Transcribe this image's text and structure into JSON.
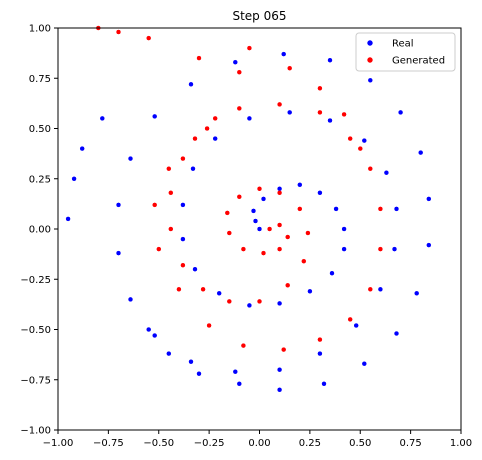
{
  "chart_data": {
    "type": "scatter",
    "title": "Step 065",
    "xlabel": "",
    "ylabel": "",
    "xlim": [
      -1.0,
      1.0
    ],
    "ylim": [
      -1.0,
      1.0
    ],
    "grid": false,
    "legend_position": "top-right",
    "xticks": [
      "−1.00",
      "−0.75",
      "−0.50",
      "−0.25",
      "0.00",
      "0.25",
      "0.50",
      "0.75",
      "1.00"
    ],
    "yticks": [
      "−1.00",
      "−0.75",
      "−0.50",
      "−0.25",
      "0.00",
      "0.25",
      "0.50",
      "0.75",
      "1.00"
    ],
    "series": [
      {
        "name": "Real",
        "color": "#0000ff",
        "points": [
          [
            0.0,
            0.0
          ],
          [
            -0.02,
            0.04
          ],
          [
            -0.03,
            0.09
          ],
          [
            0.02,
            0.15
          ],
          [
            0.1,
            0.2
          ],
          [
            0.2,
            0.22
          ],
          [
            0.3,
            0.18
          ],
          [
            0.38,
            0.1
          ],
          [
            0.42,
            0.0
          ],
          [
            0.42,
            -0.1
          ],
          [
            0.36,
            -0.22
          ],
          [
            0.25,
            -0.31
          ],
          [
            0.1,
            -0.37
          ],
          [
            -0.05,
            -0.38
          ],
          [
            -0.2,
            -0.32
          ],
          [
            -0.32,
            -0.2
          ],
          [
            -0.38,
            -0.05
          ],
          [
            -0.38,
            0.12
          ],
          [
            -0.33,
            0.3
          ],
          [
            -0.22,
            0.45
          ],
          [
            -0.05,
            0.55
          ],
          [
            0.15,
            0.58
          ],
          [
            0.35,
            0.54
          ],
          [
            0.52,
            0.44
          ],
          [
            0.63,
            0.28
          ],
          [
            0.68,
            0.1
          ],
          [
            0.67,
            -0.1
          ],
          [
            0.6,
            -0.3
          ],
          [
            0.48,
            -0.48
          ],
          [
            0.3,
            -0.62
          ],
          [
            0.1,
            -0.7
          ],
          [
            -0.12,
            -0.71
          ],
          [
            -0.34,
            -0.66
          ],
          [
            -0.52,
            -0.53
          ],
          [
            -0.64,
            -0.35
          ],
          [
            -0.7,
            -0.12
          ],
          [
            -0.7,
            0.12
          ],
          [
            -0.64,
            0.35
          ],
          [
            -0.52,
            0.56
          ],
          [
            -0.34,
            0.72
          ],
          [
            -0.12,
            0.83
          ],
          [
            0.12,
            0.87
          ],
          [
            0.35,
            0.84
          ],
          [
            0.55,
            0.74
          ],
          [
            0.7,
            0.58
          ],
          [
            0.8,
            0.38
          ],
          [
            0.84,
            0.15
          ],
          [
            0.84,
            -0.08
          ],
          [
            0.78,
            -0.32
          ],
          [
            0.68,
            -0.52
          ],
          [
            0.52,
            -0.67
          ],
          [
            0.32,
            -0.77
          ],
          [
            0.1,
            -0.8
          ],
          [
            -0.1,
            -0.77
          ],
          [
            -0.3,
            -0.72
          ],
          [
            -0.45,
            -0.62
          ],
          [
            -0.55,
            -0.5
          ],
          [
            -0.78,
            0.55
          ],
          [
            -0.88,
            0.4
          ],
          [
            -0.92,
            0.25
          ],
          [
            -0.95,
            0.05
          ]
        ]
      },
      {
        "name": "Generated",
        "color": "#ff0000",
        "points": [
          [
            0.05,
            0.0
          ],
          [
            0.1,
            0.02
          ],
          [
            0.14,
            -0.04
          ],
          [
            0.1,
            -0.1
          ],
          [
            0.02,
            -0.12
          ],
          [
            -0.08,
            -0.1
          ],
          [
            -0.15,
            -0.02
          ],
          [
            -0.16,
            0.08
          ],
          [
            -0.1,
            0.16
          ],
          [
            0.0,
            0.2
          ],
          [
            0.1,
            0.18
          ],
          [
            0.2,
            0.1
          ],
          [
            0.24,
            -0.02
          ],
          [
            0.22,
            -0.16
          ],
          [
            0.14,
            -0.28
          ],
          [
            0.0,
            -0.36
          ],
          [
            -0.15,
            -0.36
          ],
          [
            -0.28,
            -0.3
          ],
          [
            -0.38,
            -0.18
          ],
          [
            -0.44,
            0.0
          ],
          [
            -0.44,
            0.18
          ],
          [
            -0.38,
            0.35
          ],
          [
            -0.26,
            0.5
          ],
          [
            -0.1,
            0.6
          ],
          [
            0.1,
            0.62
          ],
          [
            0.3,
            0.58
          ],
          [
            0.45,
            0.45
          ],
          [
            0.55,
            0.3
          ],
          [
            0.6,
            0.1
          ],
          [
            0.6,
            -0.1
          ],
          [
            0.55,
            -0.3
          ],
          [
            0.45,
            -0.45
          ],
          [
            0.3,
            -0.55
          ],
          [
            0.12,
            -0.6
          ],
          [
            -0.08,
            -0.58
          ],
          [
            -0.25,
            -0.48
          ],
          [
            -0.4,
            -0.3
          ],
          [
            -0.5,
            -0.1
          ],
          [
            -0.52,
            0.12
          ],
          [
            -0.45,
            0.3
          ],
          [
            -0.32,
            0.45
          ],
          [
            -0.22,
            0.55
          ],
          [
            -0.1,
            0.78
          ],
          [
            -0.3,
            0.85
          ],
          [
            -0.05,
            0.9
          ],
          [
            0.15,
            0.8
          ],
          [
            0.3,
            0.7
          ],
          [
            0.42,
            0.57
          ],
          [
            0.5,
            0.4
          ],
          [
            -0.55,
            0.95
          ],
          [
            -0.7,
            0.98
          ],
          [
            -0.8,
            1.0
          ]
        ]
      }
    ]
  }
}
